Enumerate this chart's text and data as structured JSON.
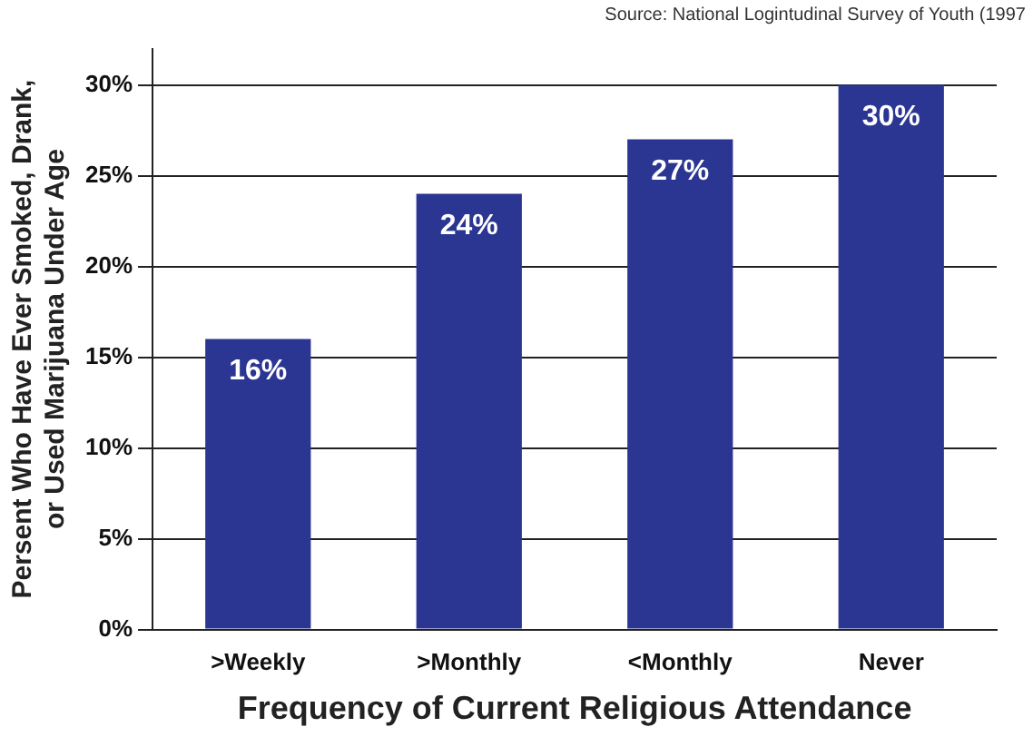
{
  "chart_data": {
    "type": "bar",
    "categories": [
      ">Weekly",
      ">Monthly",
      "<Monthly",
      "Never"
    ],
    "values": [
      16,
      24,
      27,
      30
    ],
    "value_labels": [
      "16%",
      "24%",
      "27%",
      "30%"
    ],
    "color": "#2b3592",
    "ylim": [
      0,
      32
    ],
    "yticks": [
      {
        "value": 0,
        "label": "0%"
      },
      {
        "value": 5,
        "label": "5%"
      },
      {
        "value": 10,
        "label": "10%"
      },
      {
        "value": 15,
        "label": "15%"
      },
      {
        "value": 20,
        "label": "20%"
      },
      {
        "value": 25,
        "label": "25%"
      },
      {
        "value": 30,
        "label": "30%"
      }
    ],
    "grid": "y",
    "xlabel": "Frequency of Current Religious Attendance",
    "ylabel": "Persent Who Have Ever Smoked, Drank,\nor Used Marijuana Under Age",
    "annotations": [
      "Source: National Logintudinal Survey of Youth (1997"
    ]
  }
}
